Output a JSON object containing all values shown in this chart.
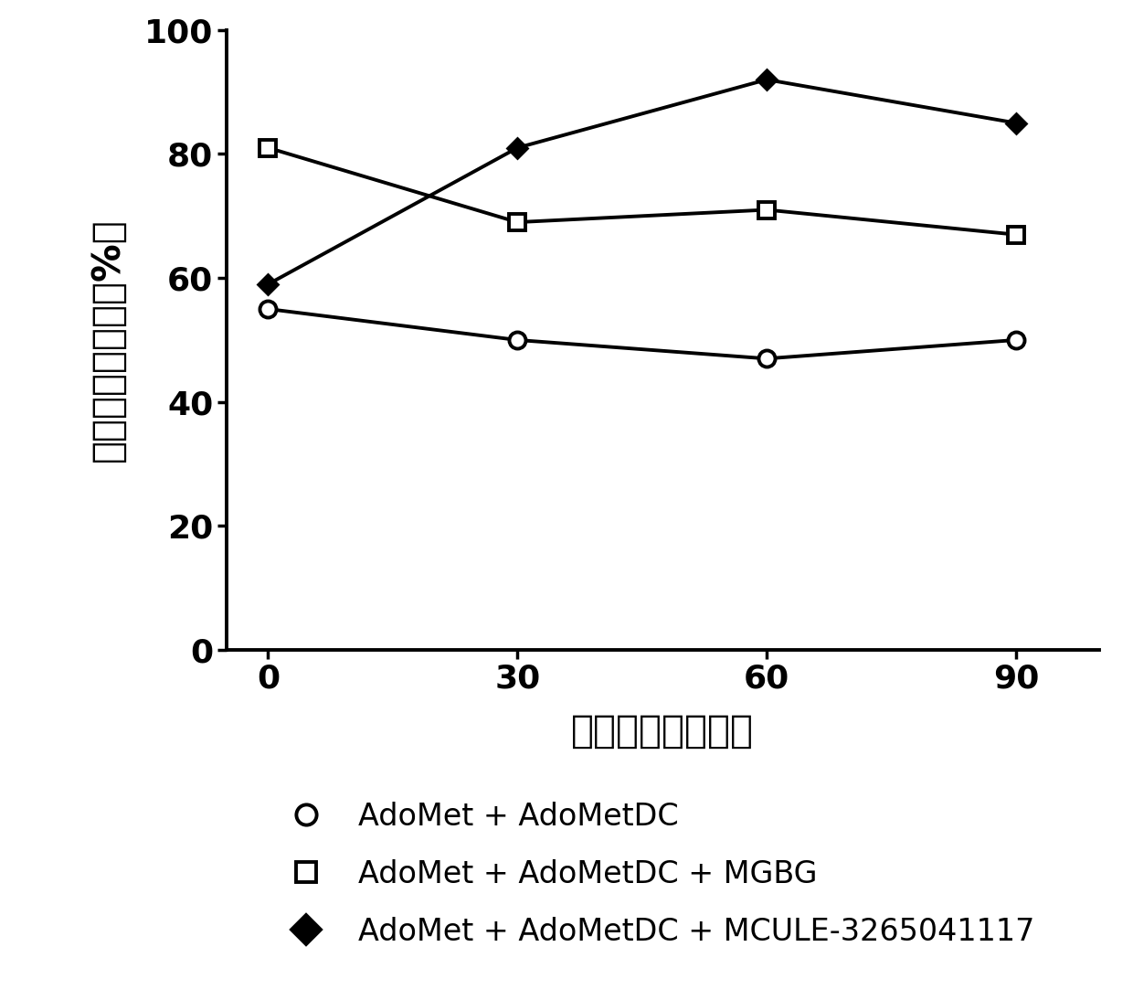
{
  "x": [
    0,
    30,
    60,
    90
  ],
  "series_circle": [
    55,
    50,
    47,
    50
  ],
  "series_square": [
    81,
    69,
    71,
    67
  ],
  "series_diamond": [
    59,
    81,
    92,
    85
  ],
  "xlabel": "孵育时间（分钟）",
  "ylabel": "底物残余百分比（%）",
  "ylim": [
    0,
    100
  ],
  "xlim": [
    -5,
    100
  ],
  "yticks": [
    0,
    20,
    40,
    60,
    80,
    100
  ],
  "xticks": [
    0,
    30,
    60,
    90
  ],
  "legend_circle": "AdoMet + AdoMetDC",
  "legend_square": "AdoMet + AdoMetDC + MGBG",
  "legend_diamond": "AdoMet + AdoMetDC + MCULE-3265041117",
  "line_color": "#000000",
  "line_width": 2.8,
  "marker_size_circle": 13,
  "marker_size_square": 13,
  "marker_size_diamond": 11,
  "background_color": "#ffffff",
  "axis_label_fontsize": 30,
  "tick_fontsize": 26,
  "legend_fontsize": 24
}
